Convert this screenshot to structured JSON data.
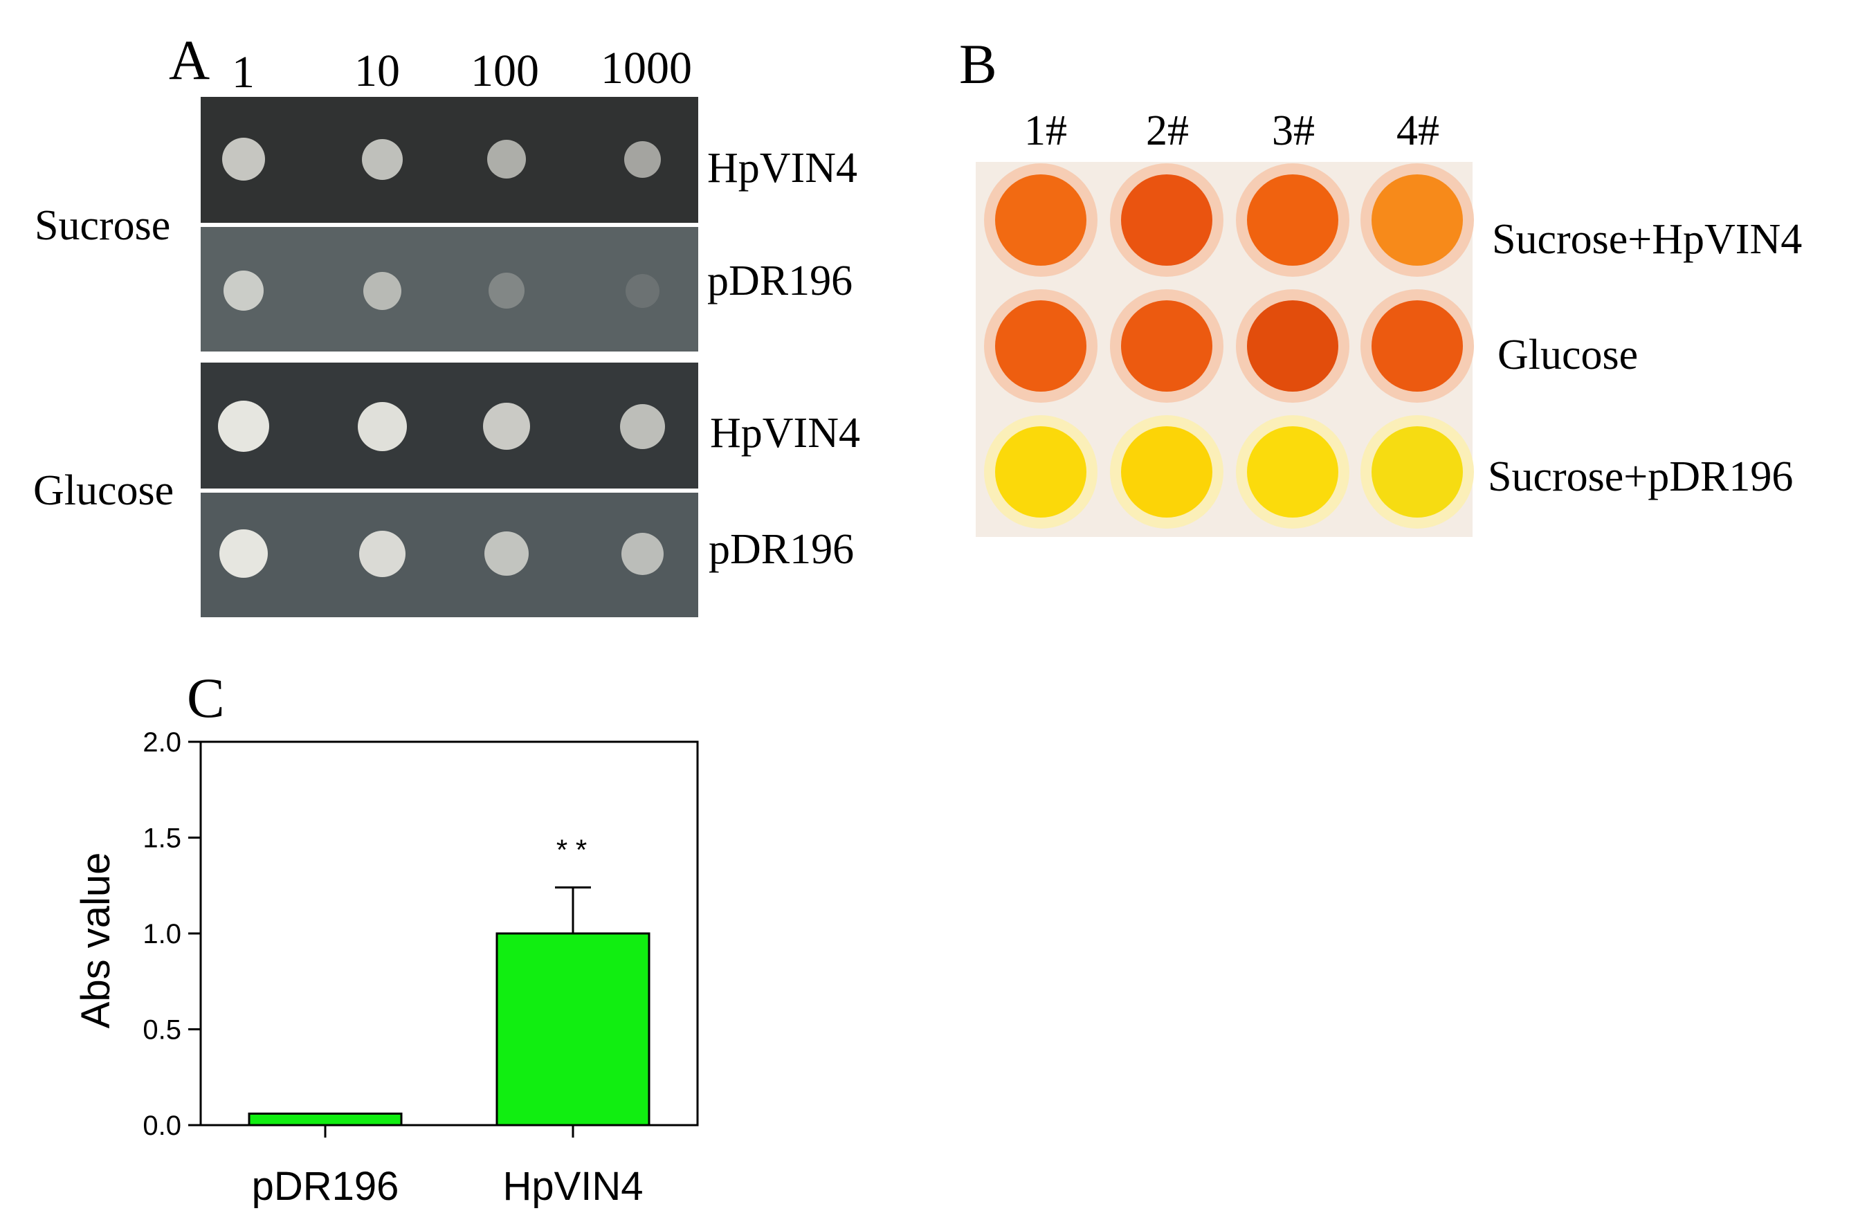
{
  "panel_a": {
    "letter": "A",
    "dilutions": [
      "1",
      "10",
      "100",
      "1000"
    ],
    "groups": [
      {
        "medium": "Sucrose",
        "rows": [
          {
            "strain": "HpVIN4",
            "growth": [
              0.45,
              0.43,
              0.38,
              0.35
            ]
          },
          {
            "strain": "pDR196",
            "growth": [
              0.45,
              0.38,
              0.15,
              0.03
            ]
          }
        ]
      },
      {
        "medium": "Glucose",
        "rows": [
          {
            "strain": "HpVIN4",
            "growth": [
              0.55,
              0.52,
              0.46,
              0.42
            ]
          },
          {
            "strain": "pDR196",
            "growth": [
              0.55,
              0.5,
              0.42,
              0.4
            ]
          }
        ]
      }
    ]
  },
  "panel_b": {
    "letter": "B",
    "columns": [
      "1#",
      "2#",
      "3#",
      "4#"
    ],
    "rows": [
      {
        "label": "Sucrose+HpVIN4",
        "colors": [
          "#f26a12",
          "#ea5410",
          "#f0620f",
          "#f78a1a"
        ]
      },
      {
        "label": "Glucose",
        "colors": [
          "#ee5e10",
          "#ec5a10",
          "#e24d0c",
          "#ec5a10"
        ]
      },
      {
        "label": "Sucrose+pDR196",
        "colors": [
          "#fbd90a",
          "#fcd407",
          "#fbdb0c",
          "#f6dc12"
        ]
      }
    ]
  },
  "panel_c": {
    "letter": "C",
    "chart_data": {
      "type": "bar",
      "categories": [
        "pDR196",
        "HpVIN4"
      ],
      "values": [
        0.06,
        1.0
      ],
      "error": [
        0.0,
        0.24
      ],
      "significance": [
        "",
        "* *"
      ],
      "ylabel": "Abs value",
      "xlabel": "",
      "ylim": [
        0,
        2.0
      ],
      "yticks": [
        "0.0",
        "0.5",
        "1.0",
        "1.5",
        "2.0"
      ],
      "bar_color": "#11ee11",
      "grid": false
    }
  }
}
